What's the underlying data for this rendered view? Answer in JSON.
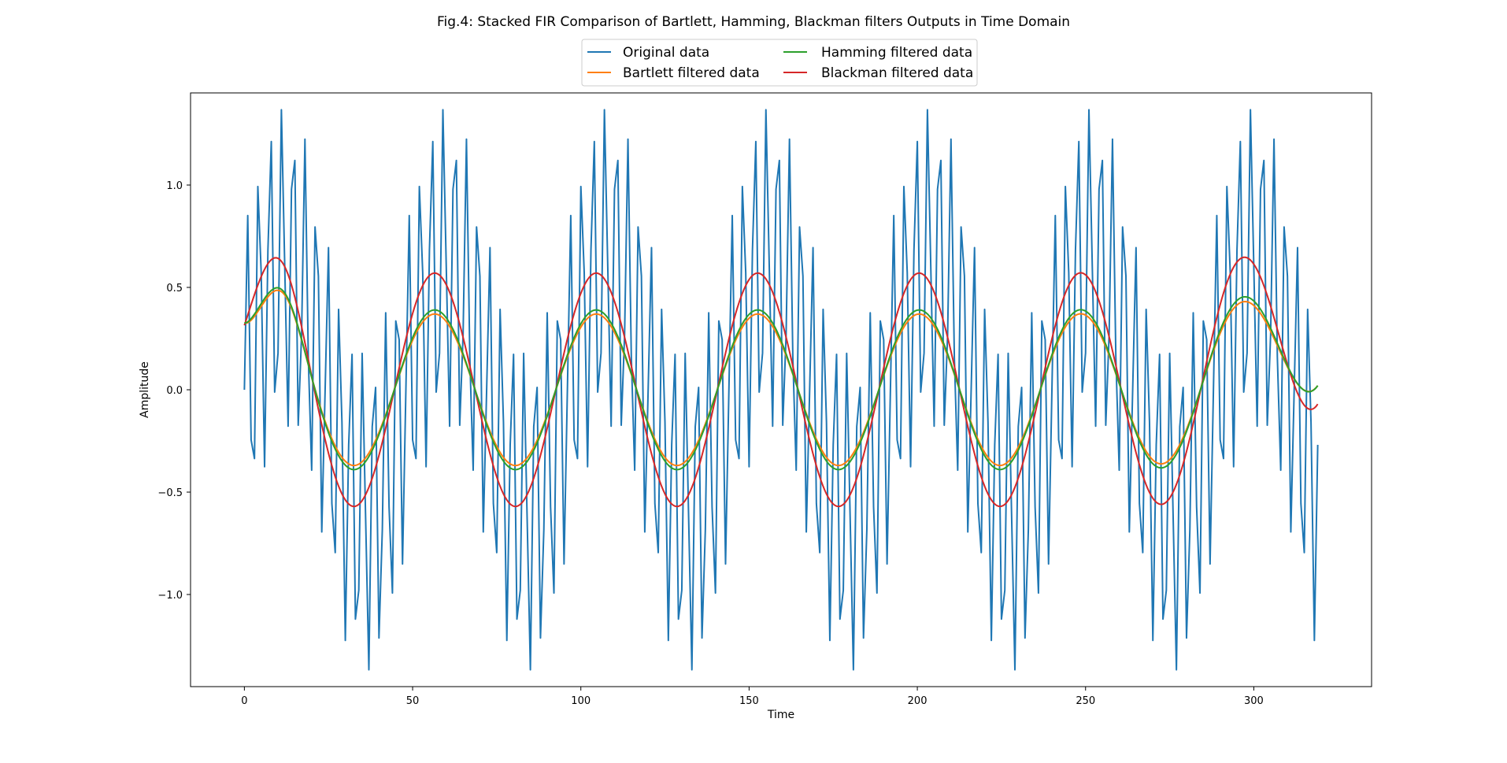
{
  "chart_data": {
    "type": "line",
    "title": "Fig.4: Stacked FIR Comparison of Bartlett, Hamming, Blackman filters Outputs in Time Domain",
    "xlabel": "Time",
    "ylabel": "Amplitude",
    "xlim": [
      -16,
      335
    ],
    "ylim": [
      -1.45,
      1.45
    ],
    "xticks": [
      0,
      50,
      100,
      150,
      200,
      250,
      300
    ],
    "xtick_labels": [
      "0",
      "50",
      "100",
      "150",
      "200",
      "250",
      "300"
    ],
    "yticks": [
      -1.0,
      -0.5,
      0.0,
      0.5,
      1.0
    ],
    "ytick_labels": [
      "−1.0",
      "−0.5",
      "0.0",
      "0.5",
      "1.0"
    ],
    "grid": false,
    "legend": {
      "placement": "top-center",
      "columns": 2
    },
    "x_range": [
      0,
      319
    ],
    "period": 48,
    "series": [
      {
        "name": "Original data",
        "color": "#1f77b4",
        "description_of_values": "sum of a slow sine (period 48) and a fast sine (period ~3.4), sampled at integer times 0..319",
        "components": [
          {
            "amplitude": 0.6,
            "period": 48
          },
          {
            "amplitude": 0.8,
            "period": 3.4285714
          }
        ]
      },
      {
        "name": "Bartlett filtered data",
        "color": "#ff7f0e",
        "start_value": 0.32,
        "steady_amplitude": 0.37,
        "first_peak": 0.46,
        "last_value": 0.02
      },
      {
        "name": "Hamming filtered data",
        "color": "#2ca02c",
        "start_value": 0.32,
        "steady_amplitude": 0.39,
        "first_peak": 0.47,
        "last_value": 0.02
      },
      {
        "name": "Blackman filtered data",
        "color": "#d62728",
        "start_value": 0.31,
        "steady_amplitude": 0.57,
        "first_peak": 0.6,
        "last_value": -0.07
      }
    ]
  }
}
